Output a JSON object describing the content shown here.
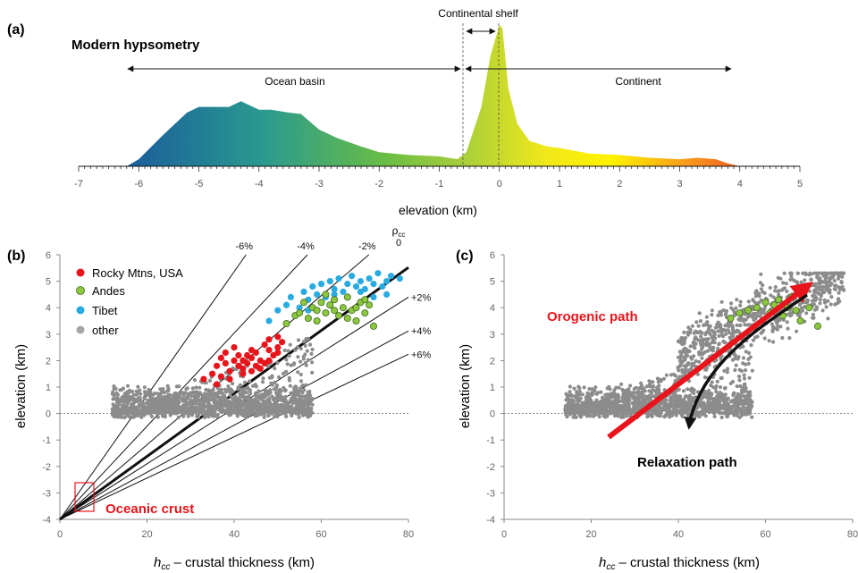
{
  "panel_a": {
    "label": "(a)",
    "title": "Modern hypsometry",
    "arrow_ocean": "Ocean basin",
    "arrow_continent": "Continent",
    "arrow_shelf": "Continental shelf",
    "xlabel": "elevation (km)"
  },
  "panel_b": {
    "label": "(b)",
    "xlabel_var": "h",
    "xlabel_sub": "cc",
    "xlabel_rest": " – crustal thickness (km)",
    "ylabel": "elevation (km)",
    "rho_label": "ρ",
    "rho_sub": "cc",
    "line_labels": [
      "-6%",
      "-4%",
      "-2%",
      "0",
      "+2%",
      "+4%",
      "+6%"
    ],
    "legend": [
      "Rocky Mtns, USA",
      "Andes",
      "Tibet",
      "other"
    ],
    "annotation": "Oceanic crust"
  },
  "panel_c": {
    "label": "(c)",
    "xlabel_var": "h",
    "xlabel_sub": "cc",
    "xlabel_rest": " – crustal thickness (km)",
    "ylabel": "elevation (km)",
    "orogenic": "Orogenic path",
    "relaxation": "Relaxation path"
  },
  "colors": {
    "rocky": "#e8141b",
    "andes": "#8dc63f",
    "tibet": "#29abe2",
    "other": "#8c8c8c",
    "orogenic": "#e8141b",
    "relaxation": "#111111"
  },
  "chart_data": [
    {
      "type": "area",
      "title": "Modern hypsometry",
      "xlabel": "elevation (km)",
      "ylabel": "",
      "xlim": [
        -7,
        5
      ],
      "x": [
        -6.2,
        -6.0,
        -5.6,
        -5.2,
        -5.0,
        -4.8,
        -4.5,
        -4.3,
        -4.0,
        -3.8,
        -3.5,
        -3.3,
        -3.0,
        -2.7,
        -2.3,
        -2.0,
        -1.5,
        -1.0,
        -0.7,
        -0.55,
        -0.3,
        -0.15,
        0.0,
        0.05,
        0.15,
        0.3,
        0.5,
        0.8,
        1.0,
        1.5,
        2.0,
        2.5,
        3.0,
        3.3,
        3.6,
        3.8,
        4.0,
        4.5
      ],
      "y": [
        0.0,
        0.05,
        0.22,
        0.38,
        0.42,
        0.42,
        0.42,
        0.46,
        0.4,
        0.4,
        0.38,
        0.37,
        0.26,
        0.2,
        0.14,
        0.1,
        0.08,
        0.07,
        0.05,
        0.1,
        0.42,
        0.78,
        1.0,
        0.98,
        0.55,
        0.3,
        0.18,
        0.14,
        0.13,
        0.09,
        0.08,
        0.06,
        0.05,
        0.06,
        0.05,
        0.02,
        0.0,
        0.0
      ],
      "xticks": [
        -7,
        -6,
        -5,
        -4,
        -3,
        -2,
        -1,
        0,
        1,
        2,
        3,
        4,
        5
      ]
    },
    {
      "type": "scatter",
      "xlabel": "hcc – crustal thickness (km)",
      "ylabel": "elevation (km)",
      "xlim": [
        0,
        80
      ],
      "ylim": [
        -4,
        6
      ],
      "xticks": [
        0,
        20,
        40,
        60,
        80
      ],
      "yticks": [
        -4,
        -3,
        -2,
        -1,
        0,
        1,
        2,
        3,
        4,
        5,
        6
      ],
      "reference_lines": {
        "origin": [
          0,
          -4
        ],
        "labels": [
          "-6%",
          "-4%",
          "-2%",
          "0",
          "+2%",
          "+4%",
          "+6%"
        ],
        "slopes_km_per_km": [
          0.234,
          0.176,
          0.141,
          0.119,
          0.105,
          0.089,
          0.078
        ]
      },
      "series": [
        {
          "name": "Rocky Mtns, USA",
          "x": [
            33,
            35,
            36,
            37,
            38,
            38,
            39,
            40,
            40,
            41,
            41,
            42,
            42,
            43,
            43,
            44,
            44,
            45,
            45,
            46,
            47,
            47,
            48,
            48,
            49,
            50,
            50,
            51,
            36,
            37,
            39,
            42,
            44,
            46,
            48,
            50
          ],
          "y": [
            1.3,
            1.5,
            1.8,
            2.1,
            1.9,
            2.3,
            1.6,
            2.0,
            2.5,
            1.8,
            2.2,
            1.7,
            2.0,
            2.2,
            1.9,
            2.4,
            2.1,
            1.8,
            2.3,
            2.0,
            2.6,
            1.9,
            2.4,
            2.8,
            2.2,
            2.5,
            2.9,
            2.7,
            1.1,
            1.4,
            1.3,
            1.5,
            1.6,
            1.7,
            2.0,
            2.3
          ]
        },
        {
          "name": "Andes",
          "x": [
            52,
            54,
            55,
            57,
            58,
            59,
            60,
            61,
            62,
            63,
            64,
            65,
            66,
            67,
            68,
            69,
            70,
            71,
            72,
            56,
            59,
            61,
            63,
            66,
            68,
            70
          ],
          "y": [
            3.4,
            3.7,
            3.8,
            3.6,
            4.0,
            3.9,
            4.2,
            3.8,
            4.1,
            4.3,
            3.7,
            4.0,
            4.4,
            3.9,
            3.5,
            4.2,
            3.8,
            4.1,
            3.3,
            4.2,
            3.5,
            4.5,
            3.9,
            3.6,
            4.0,
            4.3
          ]
        },
        {
          "name": "Tibet",
          "x": [
            48,
            50,
            52,
            53,
            55,
            56,
            57,
            58,
            59,
            60,
            61,
            62,
            63,
            64,
            65,
            66,
            67,
            68,
            69,
            70,
            71,
            72,
            73,
            74,
            75,
            76,
            78,
            54,
            57,
            60,
            63,
            66,
            69,
            72,
            75
          ],
          "y": [
            3.5,
            3.9,
            4.1,
            4.4,
            4.0,
            4.6,
            4.3,
            4.8,
            4.5,
            4.9,
            4.4,
            5.0,
            4.7,
            5.1,
            4.6,
            4.9,
            5.2,
            4.8,
            5.0,
            4.7,
            5.1,
            4.9,
            5.3,
            4.8,
            5.0,
            5.2,
            5.1,
            3.7,
            3.9,
            4.2,
            4.5,
            4.4,
            4.6,
            4.4,
            4.5
          ]
        },
        {
          "name": "other",
          "x_range": [
            10,
            60
          ],
          "y_range": [
            -0.3,
            3.0
          ],
          "dense_band_y": [
            0.0,
            1.0
          ]
        }
      ],
      "annotation": "Oceanic crust"
    },
    {
      "type": "scatter",
      "xlabel": "hcc – crustal thickness (km)",
      "ylabel": "elevation (km)",
      "xlim": [
        0,
        80
      ],
      "ylim": [
        -4,
        6
      ],
      "xticks": [
        0,
        20,
        40,
        60,
        80
      ],
      "yticks": [
        -4,
        -3,
        -2,
        -1,
        0,
        1,
        2,
        3,
        4,
        5,
        6
      ],
      "paths": [
        {
          "name": "Orogenic path",
          "from": [
            24,
            -0.8
          ],
          "to": [
            70,
            5.0
          ]
        },
        {
          "name": "Relaxation path",
          "from": [
            70,
            4.5
          ],
          "via": [
            45,
            2.0
          ],
          "to": [
            42,
            -1.2
          ]
        }
      ],
      "series": [
        {
          "name": "Andes",
          "x": [
            52,
            54,
            56,
            58,
            60,
            61,
            62,
            63,
            64,
            65,
            66,
            67,
            68,
            70,
            72
          ],
          "y": [
            3.6,
            3.8,
            3.9,
            4.0,
            4.2,
            3.8,
            4.1,
            4.3,
            3.7,
            4.0,
            4.4,
            3.9,
            3.5,
            4.0,
            3.3
          ]
        },
        {
          "name": "other",
          "x_range": [
            12,
            80
          ],
          "y_range": [
            -0.1,
            5.2
          ],
          "dense_band_y": [
            0.0,
            1.0
          ]
        }
      ]
    }
  ]
}
